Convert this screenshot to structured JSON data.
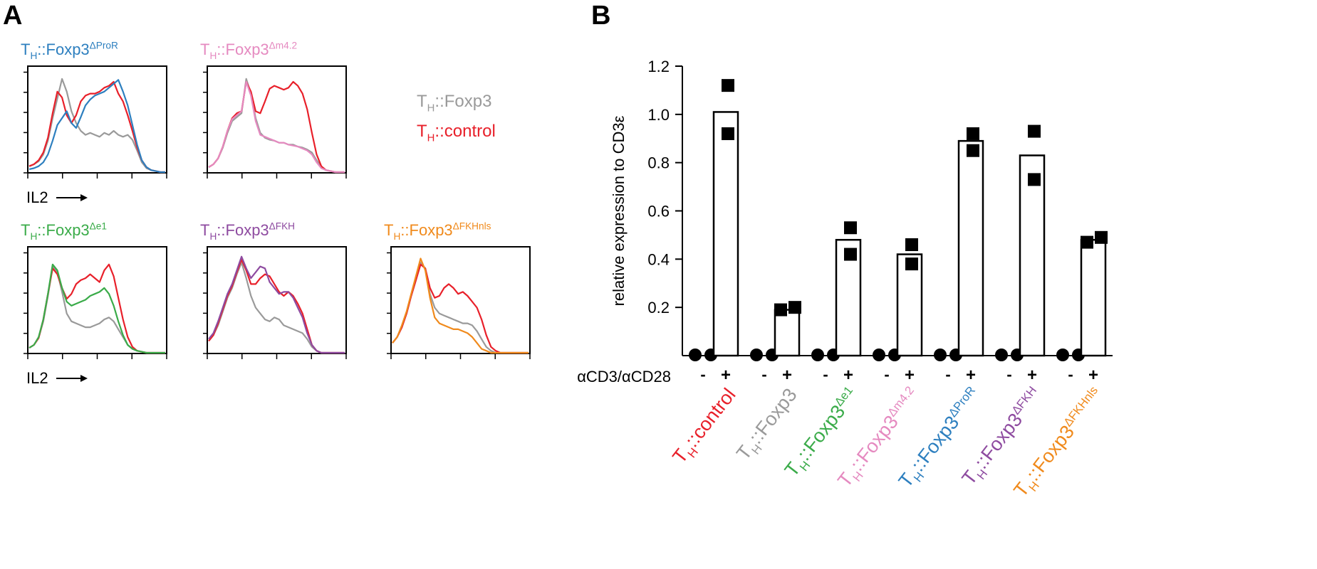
{
  "panel_a": {
    "letter": "A",
    "axis_label": "IL2",
    "legend": [
      {
        "base": "T",
        "sub": "H",
        "rest": "::Foxp3",
        "color": "#9a9a9a"
      },
      {
        "base": "T",
        "sub": "H",
        "rest": "::control",
        "color": "#e8202a"
      }
    ]
  },
  "panel_b": {
    "letter": "B",
    "ylabel": "relative expression to CD3ε",
    "stim_label": "αCD3/αCD28",
    "minus": "-",
    "plus": "+"
  },
  "colors": {
    "control": "#e8202a",
    "foxp3": "#9a9a9a",
    "dProR": "#2d7fbf",
    "dm42": "#e58ac0",
    "de1": "#3aab49",
    "dFKH": "#8e4ba0",
    "dFKHnls": "#f08a1c"
  },
  "chart_data": [
    {
      "type": "line",
      "panel": "A",
      "title": {
        "base": "T",
        "sub": "H",
        "rest": "::Foxp3",
        "sup": "ΔProR"
      },
      "title_color": "#2d7fbf",
      "xlabel": "IL2",
      "series": [
        {
          "name": "T_H::Foxp3",
          "color": "#9a9a9a",
          "values": [
            0.06,
            0.08,
            0.11,
            0.18,
            0.32,
            0.55,
            0.75,
            0.95,
            0.82,
            0.62,
            0.5,
            0.42,
            0.38,
            0.4,
            0.38,
            0.36,
            0.4,
            0.38,
            0.42,
            0.38,
            0.36,
            0.38,
            0.33,
            0.22,
            0.1,
            0.04,
            0.02,
            0.01,
            0.0,
            0.0
          ]
        },
        {
          "name": "T_H::control",
          "color": "#e8202a",
          "values": [
            0.06,
            0.08,
            0.12,
            0.2,
            0.35,
            0.6,
            0.82,
            0.76,
            0.58,
            0.5,
            0.58,
            0.72,
            0.78,
            0.8,
            0.8,
            0.82,
            0.86,
            0.88,
            0.92,
            0.8,
            0.72,
            0.58,
            0.42,
            0.25,
            0.12,
            0.05,
            0.02,
            0.01,
            0.0,
            0.0
          ]
        },
        {
          "name": "T_H::Foxp3ΔProR",
          "color": "#2d7fbf",
          "values": [
            0.03,
            0.04,
            0.06,
            0.1,
            0.18,
            0.32,
            0.48,
            0.55,
            0.62,
            0.5,
            0.45,
            0.56,
            0.68,
            0.74,
            0.78,
            0.8,
            0.82,
            0.86,
            0.9,
            0.94,
            0.82,
            0.68,
            0.48,
            0.28,
            0.12,
            0.05,
            0.02,
            0.01,
            0.0,
            0.0
          ]
        }
      ]
    },
    {
      "type": "line",
      "panel": "A",
      "title": {
        "base": "T",
        "sub": "H",
        "rest": "::Foxp3",
        "sup": "Δm4.2"
      },
      "title_color": "#e58ac0",
      "series": [
        {
          "name": "T_H::Foxp3",
          "color": "#9a9a9a",
          "values": [
            0.05,
            0.08,
            0.14,
            0.25,
            0.4,
            0.52,
            0.56,
            0.6,
            0.95,
            0.8,
            0.55,
            0.4,
            0.35,
            0.33,
            0.32,
            0.3,
            0.3,
            0.28,
            0.28,
            0.26,
            0.25,
            0.23,
            0.2,
            0.12,
            0.05,
            0.02,
            0.01,
            0.0,
            0.0,
            0.0
          ]
        },
        {
          "name": "T_H::control",
          "color": "#e8202a",
          "values": [
            0.05,
            0.08,
            0.14,
            0.26,
            0.42,
            0.55,
            0.6,
            0.62,
            0.92,
            0.82,
            0.62,
            0.6,
            0.72,
            0.85,
            0.88,
            0.86,
            0.84,
            0.86,
            0.92,
            0.88,
            0.8,
            0.64,
            0.4,
            0.18,
            0.06,
            0.02,
            0.01,
            0.0,
            0.0,
            0.0
          ]
        },
        {
          "name": "T_H::Foxp3Δm4.2",
          "color": "#e58ac0",
          "values": [
            0.05,
            0.08,
            0.14,
            0.26,
            0.42,
            0.54,
            0.58,
            0.62,
            0.92,
            0.78,
            0.52,
            0.38,
            0.36,
            0.34,
            0.32,
            0.3,
            0.3,
            0.28,
            0.27,
            0.26,
            0.24,
            0.22,
            0.18,
            0.1,
            0.04,
            0.02,
            0.01,
            0.0,
            0.0,
            0.0
          ]
        }
      ]
    },
    {
      "type": "line",
      "panel": "A",
      "title": {
        "base": "T",
        "sub": "H",
        "rest": "::Foxp3",
        "sup": "Δe1"
      },
      "title_color": "#3aab49",
      "xlabel": "IL2",
      "series": [
        {
          "name": "T_H::Foxp3",
          "color": "#9a9a9a",
          "values": [
            0.05,
            0.08,
            0.15,
            0.32,
            0.58,
            0.88,
            0.82,
            0.62,
            0.4,
            0.32,
            0.3,
            0.28,
            0.26,
            0.26,
            0.28,
            0.3,
            0.34,
            0.36,
            0.32,
            0.24,
            0.16,
            0.08,
            0.04,
            0.02,
            0.01,
            0.0,
            0.0,
            0.0,
            0.0,
            0.0
          ]
        },
        {
          "name": "T_H::control",
          "color": "#e8202a",
          "values": [
            0.05,
            0.08,
            0.15,
            0.34,
            0.6,
            0.86,
            0.8,
            0.66,
            0.55,
            0.6,
            0.7,
            0.74,
            0.76,
            0.8,
            0.76,
            0.72,
            0.84,
            0.9,
            0.78,
            0.56,
            0.34,
            0.16,
            0.06,
            0.02,
            0.01,
            0.0,
            0.0,
            0.0,
            0.0,
            0.0
          ]
        },
        {
          "name": "T_H::Foxp3Δe1",
          "color": "#3aab49",
          "values": [
            0.05,
            0.08,
            0.16,
            0.34,
            0.6,
            0.9,
            0.84,
            0.66,
            0.52,
            0.48,
            0.5,
            0.52,
            0.54,
            0.58,
            0.6,
            0.62,
            0.66,
            0.6,
            0.48,
            0.32,
            0.18,
            0.08,
            0.04,
            0.02,
            0.01,
            0.0,
            0.0,
            0.0,
            0.0,
            0.0
          ]
        }
      ]
    },
    {
      "type": "line",
      "panel": "A",
      "title": {
        "base": "T",
        "sub": "H",
        "rest": "::Foxp3",
        "sup": "ΔFKH"
      },
      "title_color": "#8e4ba0",
      "series": [
        {
          "name": "T_H::Foxp3",
          "color": "#9a9a9a",
          "values": [
            0.12,
            0.18,
            0.28,
            0.42,
            0.56,
            0.66,
            0.8,
            0.92,
            0.76,
            0.58,
            0.46,
            0.4,
            0.34,
            0.32,
            0.36,
            0.34,
            0.28,
            0.26,
            0.24,
            0.22,
            0.2,
            0.14,
            0.06,
            0.02,
            0.0,
            0.0,
            0.0,
            0.0,
            0.0,
            0.0
          ]
        },
        {
          "name": "T_H::control",
          "color": "#e8202a",
          "values": [
            0.12,
            0.18,
            0.3,
            0.44,
            0.58,
            0.68,
            0.82,
            0.95,
            0.84,
            0.7,
            0.7,
            0.76,
            0.8,
            0.78,
            0.7,
            0.62,
            0.58,
            0.62,
            0.58,
            0.5,
            0.4,
            0.24,
            0.08,
            0.02,
            0.0,
            0.0,
            0.0,
            0.0,
            0.0,
            0.0
          ]
        },
        {
          "name": "T_H::Foxp3ΔFKH",
          "color": "#8e4ba0",
          "values": [
            0.14,
            0.2,
            0.32,
            0.46,
            0.6,
            0.7,
            0.84,
            0.98,
            0.86,
            0.76,
            0.82,
            0.88,
            0.86,
            0.72,
            0.66,
            0.6,
            0.62,
            0.62,
            0.56,
            0.46,
            0.36,
            0.2,
            0.08,
            0.02,
            0.0,
            0.0,
            0.0,
            0.0,
            0.0,
            0.0
          ]
        }
      ]
    },
    {
      "type": "line",
      "panel": "A",
      "title": {
        "base": "T",
        "sub": "H",
        "rest": "::Foxp3",
        "sup": "ΔFKHnls"
      },
      "title_color": "#f08a1c",
      "series": [
        {
          "name": "T_H::Foxp3",
          "color": "#9a9a9a",
          "values": [
            0.1,
            0.16,
            0.26,
            0.4,
            0.58,
            0.74,
            0.92,
            0.86,
            0.6,
            0.46,
            0.4,
            0.38,
            0.36,
            0.34,
            0.32,
            0.3,
            0.3,
            0.28,
            0.22,
            0.14,
            0.06,
            0.02,
            0.0,
            0.0,
            0.0,
            0.0,
            0.0,
            0.0,
            0.0,
            0.0
          ]
        },
        {
          "name": "T_H::control",
          "color": "#e8202a",
          "values": [
            0.1,
            0.16,
            0.26,
            0.4,
            0.58,
            0.74,
            0.9,
            0.86,
            0.66,
            0.56,
            0.58,
            0.66,
            0.7,
            0.66,
            0.6,
            0.62,
            0.58,
            0.52,
            0.46,
            0.34,
            0.18,
            0.06,
            0.02,
            0.0,
            0.0,
            0.0,
            0.0,
            0.0,
            0.0,
            0.0
          ]
        },
        {
          "name": "T_H::Foxp3ΔFKHnls",
          "color": "#f08a1c",
          "values": [
            0.1,
            0.16,
            0.28,
            0.42,
            0.6,
            0.78,
            0.96,
            0.84,
            0.56,
            0.36,
            0.3,
            0.28,
            0.26,
            0.24,
            0.24,
            0.22,
            0.2,
            0.16,
            0.1,
            0.04,
            0.02,
            0.0,
            0.0,
            0.0,
            0.0,
            0.0,
            0.0,
            0.0,
            0.0,
            0.0
          ]
        }
      ]
    },
    {
      "type": "bar",
      "panel": "B",
      "ylabel": "relative expression to CD3ε",
      "ylim": [
        0,
        1.2
      ],
      "yticks": [
        0.2,
        0.4,
        0.6,
        0.8,
        1.0,
        1.2
      ],
      "ytick_labels": [
        "0.2",
        "0.4",
        "0.6",
        "0.8",
        "1.0",
        "1.2"
      ],
      "groups": [
        {
          "base": "T",
          "sub": "H",
          "rest": "::control",
          "sup": "",
          "color": "#e8202a",
          "unstim": [
            0,
            0
          ],
          "stim_bar": 1.01,
          "stim_points": [
            0.92,
            1.12
          ]
        },
        {
          "base": "T",
          "sub": "H",
          "rest": "::Foxp3",
          "sup": "",
          "color": "#9a9a9a",
          "unstim": [
            0,
            0
          ],
          "stim_bar": 0.19,
          "stim_points": [
            0.19,
            0.2
          ]
        },
        {
          "base": "T",
          "sub": "H",
          "rest": "::Foxp3",
          "sup": "Δe1",
          "color": "#3aab49",
          "unstim": [
            0,
            0
          ],
          "stim_bar": 0.48,
          "stim_points": [
            0.42,
            0.53
          ]
        },
        {
          "base": "T",
          "sub": "H",
          "rest": "::Foxp3",
          "sup": "Δm4.2",
          "color": "#e58ac0",
          "unstim": [
            0,
            0
          ],
          "stim_bar": 0.42,
          "stim_points": [
            0.38,
            0.46
          ]
        },
        {
          "base": "T",
          "sub": "H",
          "rest": "::Foxp3",
          "sup": "ΔProR",
          "color": "#2d7fbf",
          "unstim": [
            0,
            0
          ],
          "stim_bar": 0.89,
          "stim_points": [
            0.85,
            0.92
          ]
        },
        {
          "base": "T",
          "sub": "H",
          "rest": "::Foxp3",
          "sup": "ΔFKH",
          "color": "#8e4ba0",
          "unstim": [
            0,
            0
          ],
          "stim_bar": 0.83,
          "stim_points": [
            0.73,
            0.93
          ]
        },
        {
          "base": "T",
          "sub": "H",
          "rest": "::Foxp3",
          "sup": "ΔFKHnls",
          "color": "#f08a1c",
          "unstim": [
            0,
            0
          ],
          "stim_bar": 0.48,
          "stim_points": [
            0.47,
            0.49
          ]
        }
      ]
    }
  ]
}
